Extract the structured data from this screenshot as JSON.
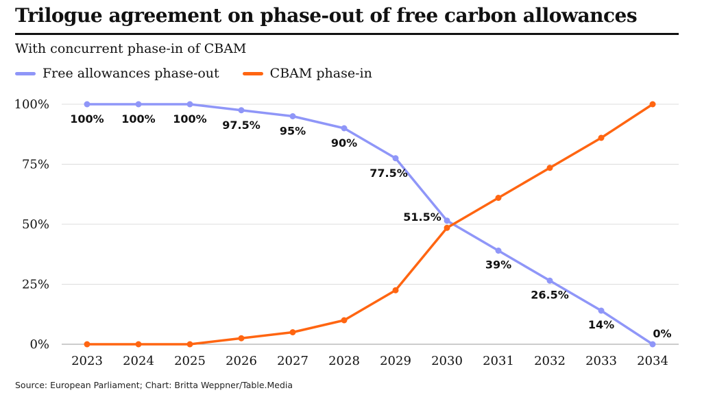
{
  "header": {
    "title": "Trilogue agreement on phase-out of free carbon allowances",
    "subtitle": "With concurrent phase-in of CBAM"
  },
  "footer": {
    "source": "Source: European Parliament; Chart: Britta Weppner/Table.Media"
  },
  "chart_data": {
    "type": "line",
    "title": "Trilogue agreement on phase-out of free carbon allowances",
    "subtitle": "With concurrent phase-in of CBAM",
    "xlabel": "",
    "ylabel": "",
    "x": [
      "2023",
      "2024",
      "2025",
      "2026",
      "2027",
      "2028",
      "2029",
      "2030",
      "2031",
      "2032",
      "2033",
      "2034"
    ],
    "y_ticks": [
      "0%",
      "25%",
      "50%",
      "75%",
      "100%"
    ],
    "ylim": [
      0,
      100
    ],
    "grid": true,
    "legend_position": "top-left",
    "series": [
      {
        "name": "Free allowances phase-out",
        "color": "#8f96f8",
        "values": [
          100,
          100,
          100,
          97.5,
          95,
          90,
          77.5,
          51.5,
          39,
          26.5,
          14,
          0
        ],
        "labels": [
          "100%",
          "100%",
          "100%",
          "97.5%",
          "95%",
          "90%",
          "77.5%",
          "51.5%",
          "39%",
          "26.5%",
          "14%",
          "0%"
        ]
      },
      {
        "name": "CBAM phase-in",
        "color": "#ff6511",
        "values": [
          0,
          0,
          0,
          2.5,
          5,
          10,
          22.5,
          48.5,
          61,
          73.5,
          86,
          100
        ]
      }
    ]
  }
}
